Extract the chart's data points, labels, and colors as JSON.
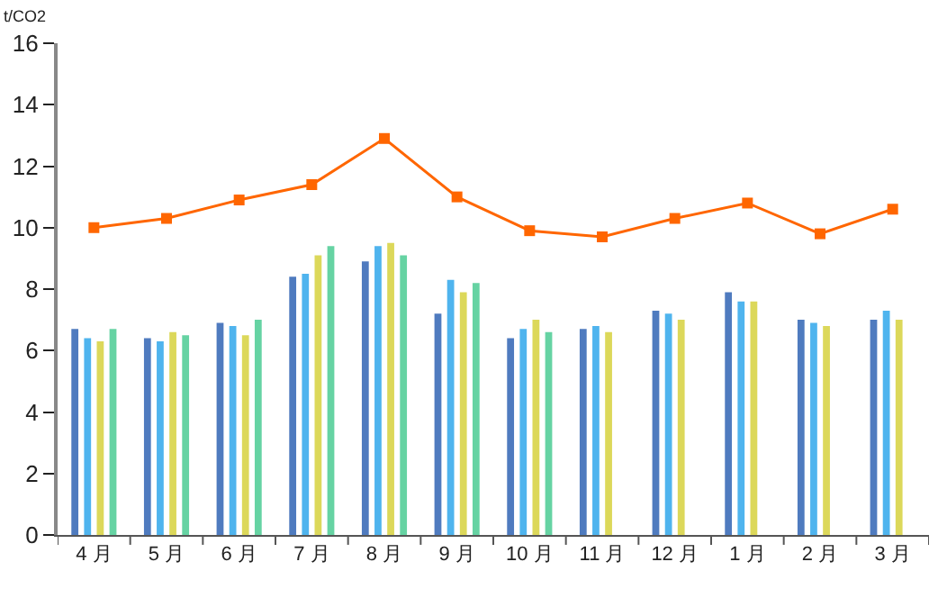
{
  "chart_data": {
    "type": "bar",
    "ylabel": "t/CO2",
    "categories": [
      "4 月",
      "5 月",
      "6 月",
      "7 月",
      "8 月",
      "9 月",
      "10 月",
      "11 月",
      "12 月",
      "1 月",
      "2 月",
      "3 月"
    ],
    "series": [
      {
        "color": "#4f7bbf",
        "values": [
          6.7,
          6.4,
          6.9,
          8.4,
          8.9,
          7.2,
          6.4,
          6.7,
          7.3,
          7.9,
          7.0,
          7.0
        ]
      },
      {
        "color": "#4fb4ee",
        "values": [
          6.4,
          6.3,
          6.8,
          8.5,
          9.4,
          8.3,
          6.7,
          6.8,
          7.2,
          7.6,
          6.9,
          7.3
        ]
      },
      {
        "color": "#dcd85a",
        "values": [
          6.3,
          6.6,
          6.5,
          9.1,
          9.5,
          7.9,
          7.0,
          6.6,
          7.0,
          7.6,
          6.8,
          7.0
        ]
      },
      {
        "color": "#66d3a3",
        "values": [
          6.7,
          6.5,
          7.0,
          9.4,
          9.1,
          8.2,
          6.6,
          null,
          null,
          null,
          null,
          null
        ]
      },
      {
        "type": "line",
        "color": "#ff6600",
        "marker": "square",
        "values": [
          10.0,
          10.3,
          10.9,
          11.4,
          12.9,
          11.0,
          9.9,
          9.7,
          10.3,
          10.8,
          9.8,
          10.6
        ]
      }
    ],
    "ylim": [
      0,
      16
    ],
    "yticks": [
      0,
      2,
      4,
      6,
      8,
      10,
      12,
      14,
      16
    ],
    "grid": false
  }
}
